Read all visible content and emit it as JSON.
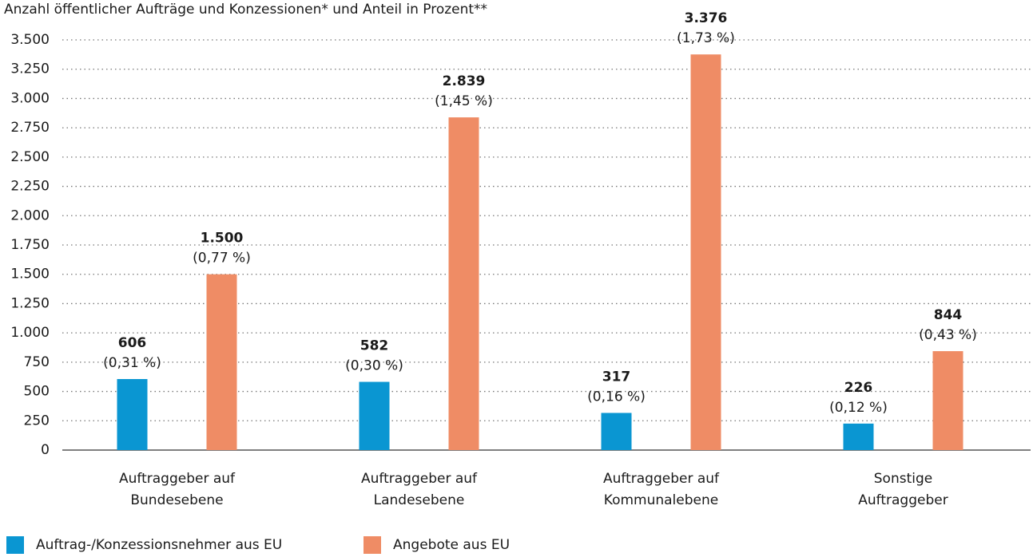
{
  "chart_data": {
    "type": "bar",
    "title": "Anzahl öffentlicher Aufträge und Konzessionen* und Anteil in Prozent**",
    "categories": [
      [
        "Auftraggeber auf",
        "Bundesebene"
      ],
      [
        "Auftraggeber auf",
        "Landesebene"
      ],
      [
        "Auftraggeber auf",
        "Kommunalebene"
      ],
      [
        "Sonstige",
        "Auftraggeber"
      ]
    ],
    "series": [
      {
        "name": "Auftrag-/Konzessionsnehmer aus EU",
        "color": "#0a96d2",
        "values": [
          606,
          582,
          317,
          226
        ],
        "value_labels": [
          [
            "606",
            "(0,31 %)"
          ],
          [
            "582",
            "(0,30 %)"
          ],
          [
            "317",
            "(0,16 %)"
          ],
          [
            "226",
            "(0,12 %)"
          ]
        ]
      },
      {
        "name": "Angebote aus EU",
        "color": "#ef8c65",
        "values": [
          1500,
          2839,
          3376,
          844
        ],
        "value_labels": [
          [
            "1.500",
            "(0,77 %)"
          ],
          [
            "2.839",
            "(1,45 %)"
          ],
          [
            "3.376",
            "(1,73 %)"
          ],
          [
            "844",
            "(0,43 %)"
          ]
        ]
      }
    ],
    "ylim": [
      0,
      3500
    ],
    "yticks": [
      0,
      250,
      500,
      750,
      {
        "value": 1000,
        "label": "1.000"
      },
      {
        "value": 1250,
        "label": "1.250"
      },
      {
        "value": 1500,
        "label": "1.500"
      },
      {
        "value": 1750,
        "label": "1.750"
      },
      {
        "value": 2000,
        "label": "2.000"
      },
      {
        "value": 2250,
        "label": "2.250"
      },
      {
        "value": 2500,
        "label": "2.500"
      },
      {
        "value": 2750,
        "label": "2.750"
      },
      {
        "value": 3000,
        "label": "3.000"
      },
      {
        "value": 3250,
        "label": "3.250"
      },
      {
        "value": 3500,
        "label": "3.500"
      }
    ],
    "grid": true,
    "legend": "bottom-left"
  }
}
